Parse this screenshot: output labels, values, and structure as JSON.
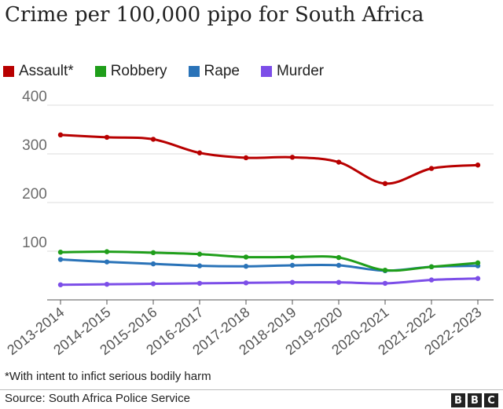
{
  "title": "Crime per 100,000 pipo for South Africa",
  "footnote": "*With intent to infict serious bodily harm",
  "source": "Source: South Africa Police Service",
  "logo": [
    "B",
    "B",
    "C"
  ],
  "chart_data": {
    "type": "line",
    "title": "Crime per 100,000 pipo for South Africa",
    "xlabel": "",
    "ylabel": "",
    "ylim": [
      0,
      400
    ],
    "yticks": [
      100,
      200,
      300,
      400
    ],
    "grid": true,
    "legend_position": "top-left",
    "categories": [
      "2013-2014",
      "2014-2015",
      "2015-2016",
      "2016-2017",
      "2017-2018",
      "2018-2019",
      "2019-2020",
      "2020-2021",
      "2021-2022",
      "2022-2023"
    ],
    "series": [
      {
        "name": "Assault*",
        "color": "#b80000",
        "values": [
          339,
          334,
          330,
          302,
          292,
          293,
          283,
          239,
          270,
          277
        ]
      },
      {
        "name": "Robbery",
        "color": "#1f9e1a",
        "values": [
          98,
          99,
          97,
          94,
          88,
          88,
          87,
          61,
          68,
          76
        ]
      },
      {
        "name": "Rape",
        "color": "#2a73b8",
        "values": [
          83,
          78,
          74,
          70,
          69,
          71,
          71,
          60,
          68,
          70
        ]
      },
      {
        "name": "Murder",
        "color": "#7c4ee8",
        "values": [
          31,
          32,
          33,
          34,
          35,
          36,
          36,
          34,
          41,
          44
        ]
      }
    ]
  }
}
